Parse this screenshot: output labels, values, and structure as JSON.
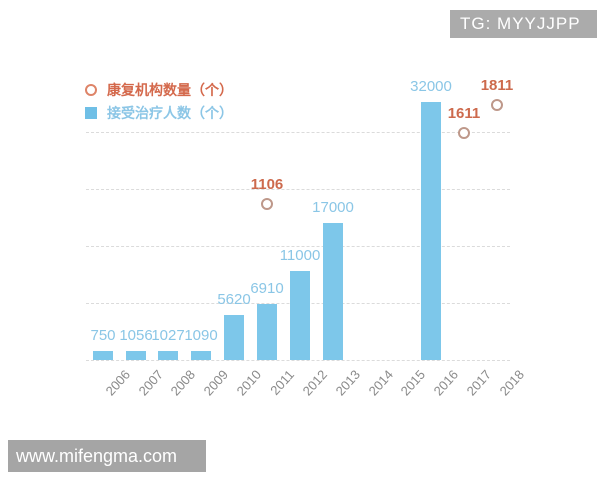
{
  "badges": {
    "tg_label": "TG: MYYJJPP",
    "tg_bg": "#ABABAB",
    "watermark": "www.mifengma.com",
    "watermark_bg": "#A5A5A5"
  },
  "legend": {
    "items": [
      {
        "label": "康复机构数量（个）",
        "marker": "circle-outline",
        "text_color": "#D4694C",
        "marker_color": "#DE8468"
      },
      {
        "label": "接受治疗人数（个）",
        "marker": "square",
        "text_color": "#8CC6E6",
        "marker_color": "#6FBFE6"
      }
    ]
  },
  "chart_data": {
    "type": "bar",
    "title": "",
    "xlabel": "",
    "ylabel": "",
    "grid": "horizontal-dashed",
    "legend_position": "top-left",
    "axis_label_color": "#8A8A8A",
    "categories": [
      "2006",
      "2007",
      "2008",
      "2009",
      "2010",
      "2011",
      "2012",
      "2013",
      "2014",
      "2015",
      "2016",
      "2017",
      "2018"
    ],
    "series": [
      {
        "name": "接受治疗人数（个）",
        "type": "bar",
        "color": "#7DC7EA",
        "label_color": "#8AC6E6",
        "values": [
          750,
          1056,
          1027,
          1090,
          5620,
          6910,
          11000,
          17000,
          null,
          null,
          32000,
          null,
          null
        ]
      },
      {
        "name": "康复机构数量（个）",
        "type": "scatter",
        "marker": "circle-outline",
        "color": "#BE988A",
        "label_color": "#CD6A4D",
        "values": [
          null,
          null,
          null,
          null,
          null,
          1106,
          null,
          null,
          null,
          null,
          null,
          1611,
          1811
        ]
      }
    ]
  }
}
